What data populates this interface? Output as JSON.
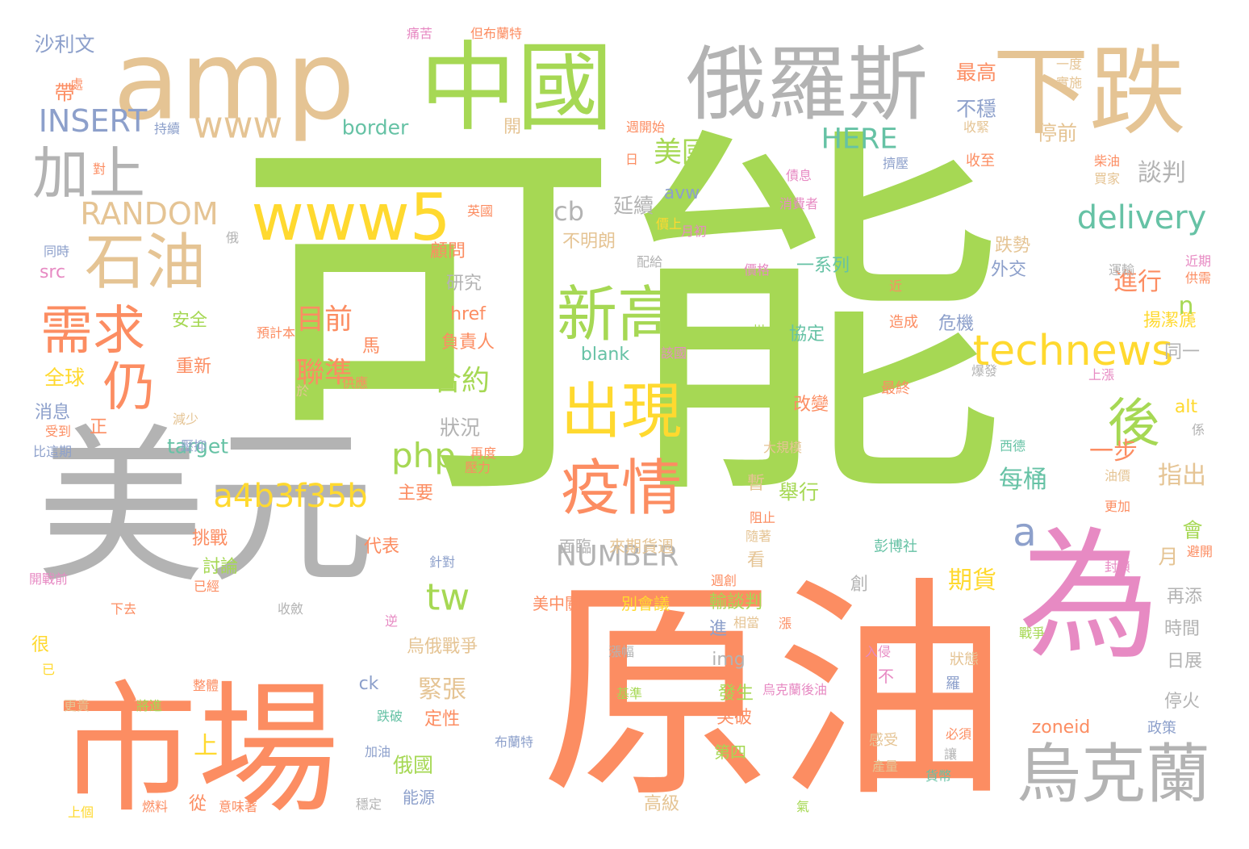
{
  "palette": {
    "green": "#a6d854",
    "orange": "#fc8d62",
    "gray": "#b3b3b3",
    "tan": "#e5c494",
    "yellow": "#ffd92f",
    "pink": "#e78ac3",
    "teal": "#66c2a5",
    "blue": "#8da0cb"
  },
  "words": [
    {
      "text": "可能",
      "color": "#a6d854"
    },
    {
      "text": "原油",
      "color": "#fc8d62"
    },
    {
      "text": "美元",
      "color": "#b3b3b3"
    },
    {
      "text": "市場",
      "color": "#fc8d62"
    },
    {
      "text": "amp",
      "color": "#e5c494"
    },
    {
      "text": "中國",
      "color": "#a6d854"
    },
    {
      "text": "俄羅斯",
      "color": "#b3b3b3"
    },
    {
      "text": "下跌",
      "color": "#e5c494"
    },
    {
      "text": "為",
      "color": "#e78ac3"
    },
    {
      "text": "烏克蘭",
      "color": "#b3b3b3"
    },
    {
      "text": "www5",
      "color": "#ffd92f"
    },
    {
      "text": "新高",
      "color": "#a6d854"
    },
    {
      "text": "出現",
      "color": "#ffd92f"
    },
    {
      "text": "疫情",
      "color": "#fc8d62"
    },
    {
      "text": "石油",
      "color": "#e5c494"
    },
    {
      "text": "需求",
      "color": "#fc8d62"
    },
    {
      "text": "加上",
      "color": "#b3b3b3"
    },
    {
      "text": "technews",
      "color": "#ffd92f"
    },
    {
      "text": "後",
      "color": "#a6d854"
    },
    {
      "text": "仍",
      "color": "#fc8d62"
    },
    {
      "text": "www",
      "color": "#e5c494"
    },
    {
      "text": "delivery",
      "color": "#66c2a5"
    },
    {
      "text": "a4b3f35b",
      "color": "#ffd92f"
    },
    {
      "text": "tw",
      "color": "#a6d854"
    },
    {
      "text": "php",
      "color": "#a6d854"
    },
    {
      "text": "INSERT",
      "color": "#8da0cb"
    },
    {
      "text": "RANDOM",
      "color": "#e5c494"
    },
    {
      "text": "NUMBER",
      "color": "#b3b3b3"
    },
    {
      "text": "HERE",
      "color": "#66c2a5"
    },
    {
      "text": "a",
      "color": "#8da0cb"
    },
    {
      "text": "美國",
      "color": "#a6d854"
    },
    {
      "text": "cb",
      "color": "#b3b3b3"
    },
    {
      "text": "目前",
      "color": "#fc8d62"
    },
    {
      "text": "聯準",
      "color": "#fc8d62"
    },
    {
      "text": "合約",
      "color": "#a6d854"
    },
    {
      "text": "緊張",
      "color": "#e5c494"
    },
    {
      "text": "期貨",
      "color": "#ffd92f"
    },
    {
      "text": "每桶",
      "color": "#66c2a5"
    },
    {
      "text": "進行",
      "color": "#fc8d62"
    },
    {
      "text": "指出",
      "color": "#e5c494"
    },
    {
      "text": "談判",
      "color": "#b3b3b3"
    },
    {
      "text": "最高",
      "color": "#fc8d62"
    },
    {
      "text": "不穩",
      "color": "#8da0cb"
    },
    {
      "text": "停前",
      "color": "#e5c494"
    },
    {
      "text": "一步",
      "color": "#fc8d62"
    },
    {
      "text": "沙利文",
      "color": "#8da0cb"
    },
    {
      "text": "帶",
      "color": "#fc8d62"
    },
    {
      "text": "border",
      "color": "#66c2a5"
    },
    {
      "text": "開",
      "color": "#e5c494"
    },
    {
      "text": "延續",
      "color": "#b3b3b3"
    },
    {
      "text": "不明朗",
      "color": "#e5c494"
    },
    {
      "text": "avw",
      "color": "#8da0cb"
    },
    {
      "text": "一系列",
      "color": "#66c2a5"
    },
    {
      "text": "跌勢",
      "color": "#e5c494"
    },
    {
      "text": "外交",
      "color": "#8da0cb"
    },
    {
      "text": "顧問",
      "color": "#fc8d62"
    },
    {
      "text": "研究",
      "color": "#b3b3b3"
    },
    {
      "text": "href",
      "color": "#fc8d62"
    },
    {
      "text": "負責人",
      "color": "#fc8d62"
    },
    {
      "text": "blank",
      "color": "#66c2a5"
    },
    {
      "text": "協定",
      "color": "#66c2a5"
    },
    {
      "text": "危機",
      "color": "#8da0cb"
    },
    {
      "text": "揚潔篪",
      "color": "#ffd92f"
    },
    {
      "text": "同一",
      "color": "#b3b3b3"
    },
    {
      "text": "全球",
      "color": "#ffd92f"
    },
    {
      "text": "安全",
      "color": "#a6d854"
    },
    {
      "text": "重新",
      "color": "#fc8d62"
    },
    {
      "text": "消息",
      "color": "#8da0cb"
    },
    {
      "text": "src",
      "color": "#e78ac3"
    },
    {
      "text": "target",
      "color": "#66c2a5"
    },
    {
      "text": "狀況",
      "color": "#b3b3b3"
    },
    {
      "text": "主要",
      "color": "#fc8d62"
    },
    {
      "text": "舉行",
      "color": "#a6d854"
    },
    {
      "text": "改變",
      "color": "#fc8d62"
    },
    {
      "text": "alt",
      "color": "#ffd92f"
    },
    {
      "text": "會",
      "color": "#a6d854"
    },
    {
      "text": "月",
      "color": "#e5c494"
    },
    {
      "text": "n",
      "color": "#a6d854"
    },
    {
      "text": "挑戰",
      "color": "#fc8d62"
    },
    {
      "text": "討論",
      "color": "#a6d854"
    },
    {
      "text": "代表",
      "color": "#fc8d62"
    },
    {
      "text": "面臨",
      "color": "#b3b3b3"
    },
    {
      "text": "來期貨週",
      "color": "#e5c494"
    },
    {
      "text": "輸談判",
      "color": "#a6d854"
    },
    {
      "text": "別會議",
      "color": "#ffd92f"
    },
    {
      "text": "美中關",
      "color": "#fc8d62"
    },
    {
      "text": "再添",
      "color": "#b3b3b3"
    },
    {
      "text": "時間",
      "color": "#b3b3b3"
    },
    {
      "text": "日展",
      "color": "#b3b3b3"
    },
    {
      "text": "烏俄戰爭",
      "color": "#e5c494"
    },
    {
      "text": "img",
      "color": "#b3b3b3"
    },
    {
      "text": "發生",
      "color": "#a6d854"
    },
    {
      "text": "突破",
      "color": "#fc8d62"
    },
    {
      "text": "停火",
      "color": "#b3b3b3"
    },
    {
      "text": "俄國",
      "color": "#a6d854"
    },
    {
      "text": "能源",
      "color": "#8da0cb"
    },
    {
      "text": "定性",
      "color": "#fc8d62"
    },
    {
      "text": "第四",
      "color": "#a6d854"
    },
    {
      "text": "高級",
      "color": "#e5c494"
    },
    {
      "text": "zoneid",
      "color": "#fc8d62"
    },
    {
      "text": "ck",
      "color": "#8da0cb"
    },
    {
      "text": "上",
      "color": "#ffd92f"
    },
    {
      "text": "從",
      "color": "#fc8d62"
    },
    {
      "text": "很",
      "color": "#ffd92f"
    },
    {
      "text": "正",
      "color": "#fc8d62"
    },
    {
      "text": "看",
      "color": "#e5c494"
    },
    {
      "text": "暫",
      "color": "#e5c494"
    },
    {
      "text": "進",
      "color": "#8da0cb"
    },
    {
      "text": "馬",
      "color": "#fc8d62"
    },
    {
      "text": "創",
      "color": "#b3b3b3"
    },
    {
      "text": "痛苦",
      "color": "#e78ac3"
    },
    {
      "text": "但布蘭特",
      "color": "#fc8d62"
    },
    {
      "text": "一度",
      "color": "#e5c494"
    },
    {
      "text": "實施",
      "color": "#e5c494"
    },
    {
      "text": "收緊",
      "color": "#e5c494"
    },
    {
      "text": "收至",
      "color": "#fc8d62"
    },
    {
      "text": "柴油",
      "color": "#fc8d62"
    },
    {
      "text": "買家",
      "color": "#e5c494"
    },
    {
      "text": "週開始",
      "color": "#fc8d62"
    },
    {
      "text": "日",
      "color": "#fc8d62"
    },
    {
      "text": "擠壓",
      "color": "#8da0cb"
    },
    {
      "text": "債息",
      "color": "#e78ac3"
    },
    {
      "text": "消費者",
      "color": "#e78ac3"
    },
    {
      "text": "價上",
      "color": "#ffd92f"
    },
    {
      "text": "月初",
      "color": "#e78ac3"
    },
    {
      "text": "英國",
      "color": "#fc8d62"
    },
    {
      "text": "同時",
      "color": "#8da0cb"
    },
    {
      "text": "俄",
      "color": "#b3b3b3"
    },
    {
      "text": "價格",
      "color": "#e78ac3"
    },
    {
      "text": "配給",
      "color": "#b3b3b3"
    },
    {
      "text": "近",
      "color": "#fc8d62"
    },
    {
      "text": "近期",
      "color": "#e78ac3"
    },
    {
      "text": "供需",
      "color": "#fc8d62"
    },
    {
      "text": "運輸",
      "color": "#b3b3b3"
    },
    {
      "text": "造成",
      "color": "#fc8d62"
    },
    {
      "text": "州",
      "color": "#a6d854"
    },
    {
      "text": "該國",
      "color": "#e78ac3"
    },
    {
      "text": "預計本",
      "color": "#fc8d62"
    },
    {
      "text": "於",
      "color": "#e5c494"
    },
    {
      "text": "供應",
      "color": "#fc8d62"
    },
    {
      "text": "爆發",
      "color": "#b3b3b3"
    },
    {
      "text": "上漲",
      "color": "#e78ac3"
    },
    {
      "text": "最終",
      "color": "#fc8d62"
    },
    {
      "text": "係",
      "color": "#b3b3b3"
    },
    {
      "text": "西德",
      "color": "#66c2a5"
    },
    {
      "text": "大規模",
      "color": "#e5c494"
    },
    {
      "text": "油價",
      "color": "#e5c494"
    },
    {
      "text": "更加",
      "color": "#fc8d62"
    },
    {
      "text": "阻止",
      "color": "#fc8d62"
    },
    {
      "text": "隨著",
      "color": "#e5c494"
    },
    {
      "text": "減少",
      "color": "#e5c494"
    },
    {
      "text": "壓抑",
      "color": "#8da0cb"
    },
    {
      "text": "受到",
      "color": "#fc8d62"
    },
    {
      "text": "比這期",
      "color": "#8da0cb"
    },
    {
      "text": "再度",
      "color": "#fc8d62"
    },
    {
      "text": "壓力",
      "color": "#fc8d62"
    },
    {
      "text": "針對",
      "color": "#8da0cb"
    },
    {
      "text": "彭博社",
      "color": "#66c2a5"
    },
    {
      "text": "避開",
      "color": "#fc8d62"
    },
    {
      "text": "封鎖",
      "color": "#e78ac3"
    },
    {
      "text": "開戰前",
      "color": "#e78ac3"
    },
    {
      "text": "已經",
      "color": "#fc8d62"
    },
    {
      "text": "下去",
      "color": "#fc8d62"
    },
    {
      "text": "收斂",
      "color": "#b3b3b3"
    },
    {
      "text": "週創",
      "color": "#fc8d62"
    },
    {
      "text": "逆",
      "color": "#e78ac3"
    },
    {
      "text": "相當",
      "color": "#e5c494"
    },
    {
      "text": "漲",
      "color": "#fc8d62"
    },
    {
      "text": "戰爭",
      "color": "#a6d854"
    },
    {
      "text": "漲幅",
      "color": "#b3b3b3"
    },
    {
      "text": "入侵",
      "color": "#e78ac3"
    },
    {
      "text": "狀態",
      "color": "#e5c494"
    },
    {
      "text": "不",
      "color": "#e78ac3"
    },
    {
      "text": "羅",
      "color": "#8da0cb"
    },
    {
      "text": "已",
      "color": "#ffd92f"
    },
    {
      "text": "更貴",
      "color": "#e5c494"
    },
    {
      "text": "將進",
      "color": "#a6d854"
    },
    {
      "text": "整體",
      "color": "#fc8d62"
    },
    {
      "text": "基準",
      "color": "#a6d854"
    },
    {
      "text": "烏克蘭後油",
      "color": "#e78ac3"
    },
    {
      "text": "跌破",
      "color": "#66c2a5"
    },
    {
      "text": "政策",
      "color": "#8da0cb"
    },
    {
      "text": "布蘭特",
      "color": "#8da0cb"
    },
    {
      "text": "必須",
      "color": "#fc8d62"
    },
    {
      "text": "感受",
      "color": "#e5c494"
    },
    {
      "text": "加油",
      "color": "#8da0cb"
    },
    {
      "text": "讓",
      "color": "#b3b3b3"
    },
    {
      "text": "產量",
      "color": "#e5c494"
    },
    {
      "text": "貨幣",
      "color": "#66c2a5"
    },
    {
      "text": "上個",
      "color": "#ffd92f"
    },
    {
      "text": "燃料",
      "color": "#fc8d62"
    },
    {
      "text": "意味著",
      "color": "#fc8d62"
    },
    {
      "text": "穩定",
      "color": "#b3b3b3"
    },
    {
      "text": "氣",
      "color": "#a6d854"
    },
    {
      "text": "持續",
      "color": "#8da0cb"
    },
    {
      "text": "對",
      "color": "#fc8d62"
    },
    {
      "text": "處",
      "color": "#fc8d62"
    },
    {
      "text": "天然",
      "color": "#ffd92f"
    }
  ]
}
